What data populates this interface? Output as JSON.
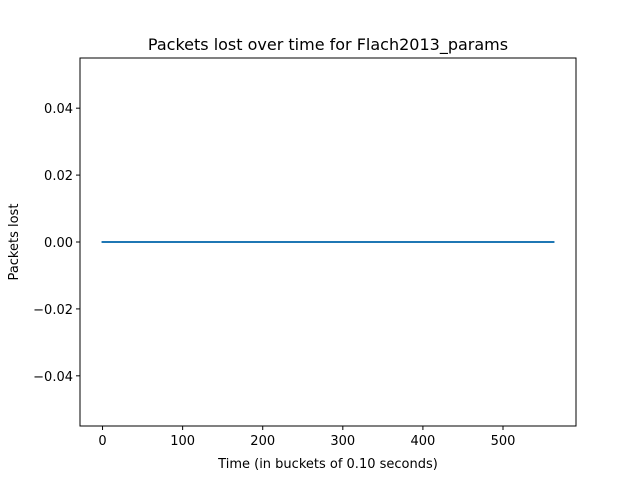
{
  "chart_data": {
    "type": "line",
    "title": "Packets lost over time for Flach2013_params",
    "xlabel": "Time (in buckets of 0.10 seconds)",
    "ylabel": "Packets lost",
    "xlim": [
      -28.15,
      591.15
    ],
    "ylim": [
      -0.055,
      0.055
    ],
    "x_ticks": [
      0,
      100,
      200,
      300,
      400,
      500
    ],
    "x_tick_labels": [
      "0",
      "100",
      "200",
      "300",
      "400",
      "500"
    ],
    "y_ticks": [
      -0.04,
      -0.02,
      0.0,
      0.02,
      0.04
    ],
    "y_tick_labels": [
      "−0.04",
      "−0.02",
      "0.00",
      "0.02",
      "0.04"
    ],
    "grid": false,
    "series": [
      {
        "color": "#1f77b4",
        "x": [
          0,
          563
        ],
        "y": [
          0,
          0
        ]
      }
    ]
  }
}
